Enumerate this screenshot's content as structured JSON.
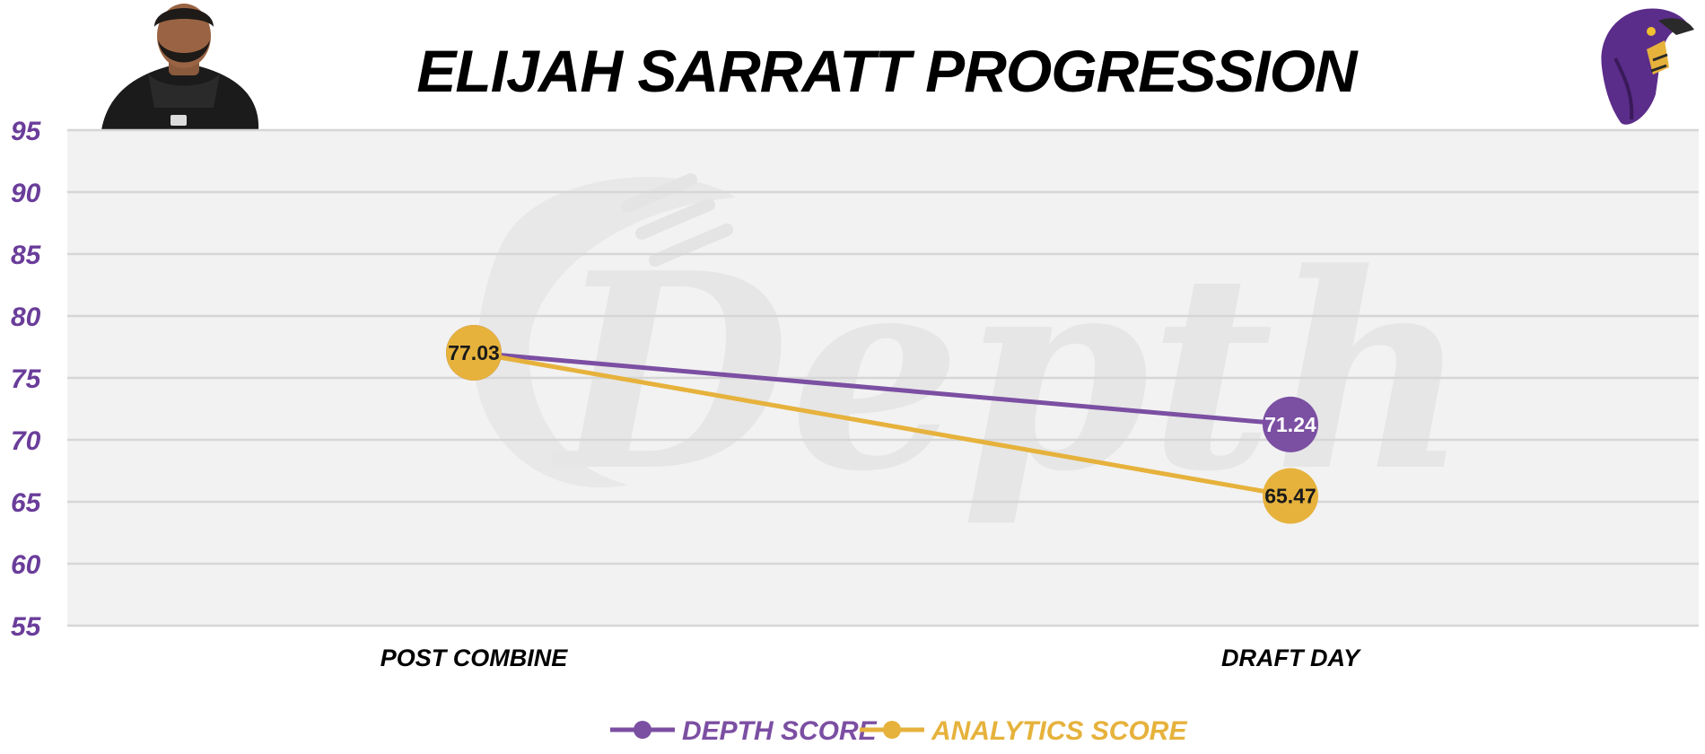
{
  "chart_data": {
    "type": "line",
    "title": "ELIJAH SARRATT PROGRESSION",
    "categories": [
      "POST COMBINE",
      "DRAFT DAY"
    ],
    "ylim": [
      55,
      95
    ],
    "yticks": [
      55,
      60,
      65,
      70,
      75,
      80,
      85,
      90,
      95
    ],
    "grid": true,
    "legend_placement": "bottom-center",
    "series": [
      {
        "name": "DEPTH SCORE",
        "values": [
          77.03,
          71.24
        ],
        "color": "#7b4fa2",
        "label_color": "#ffffff"
      },
      {
        "name": "ANALYTICS SCORE",
        "values": [
          77.03,
          65.47
        ],
        "color": "#e6b23c",
        "label_color": "#1a1a1a"
      }
    ],
    "watermark": "Depth"
  },
  "colors": {
    "plot_background": "#f2f2f2",
    "gridline": "#d6d6d6",
    "axis_text": "#6a3d9a",
    "title_text": "#000000",
    "category_text": "#000000",
    "watermark": "#e6e6e6"
  },
  "images": {
    "player_photo": "player-headshot",
    "team_logo": "raven-logo-icon"
  }
}
